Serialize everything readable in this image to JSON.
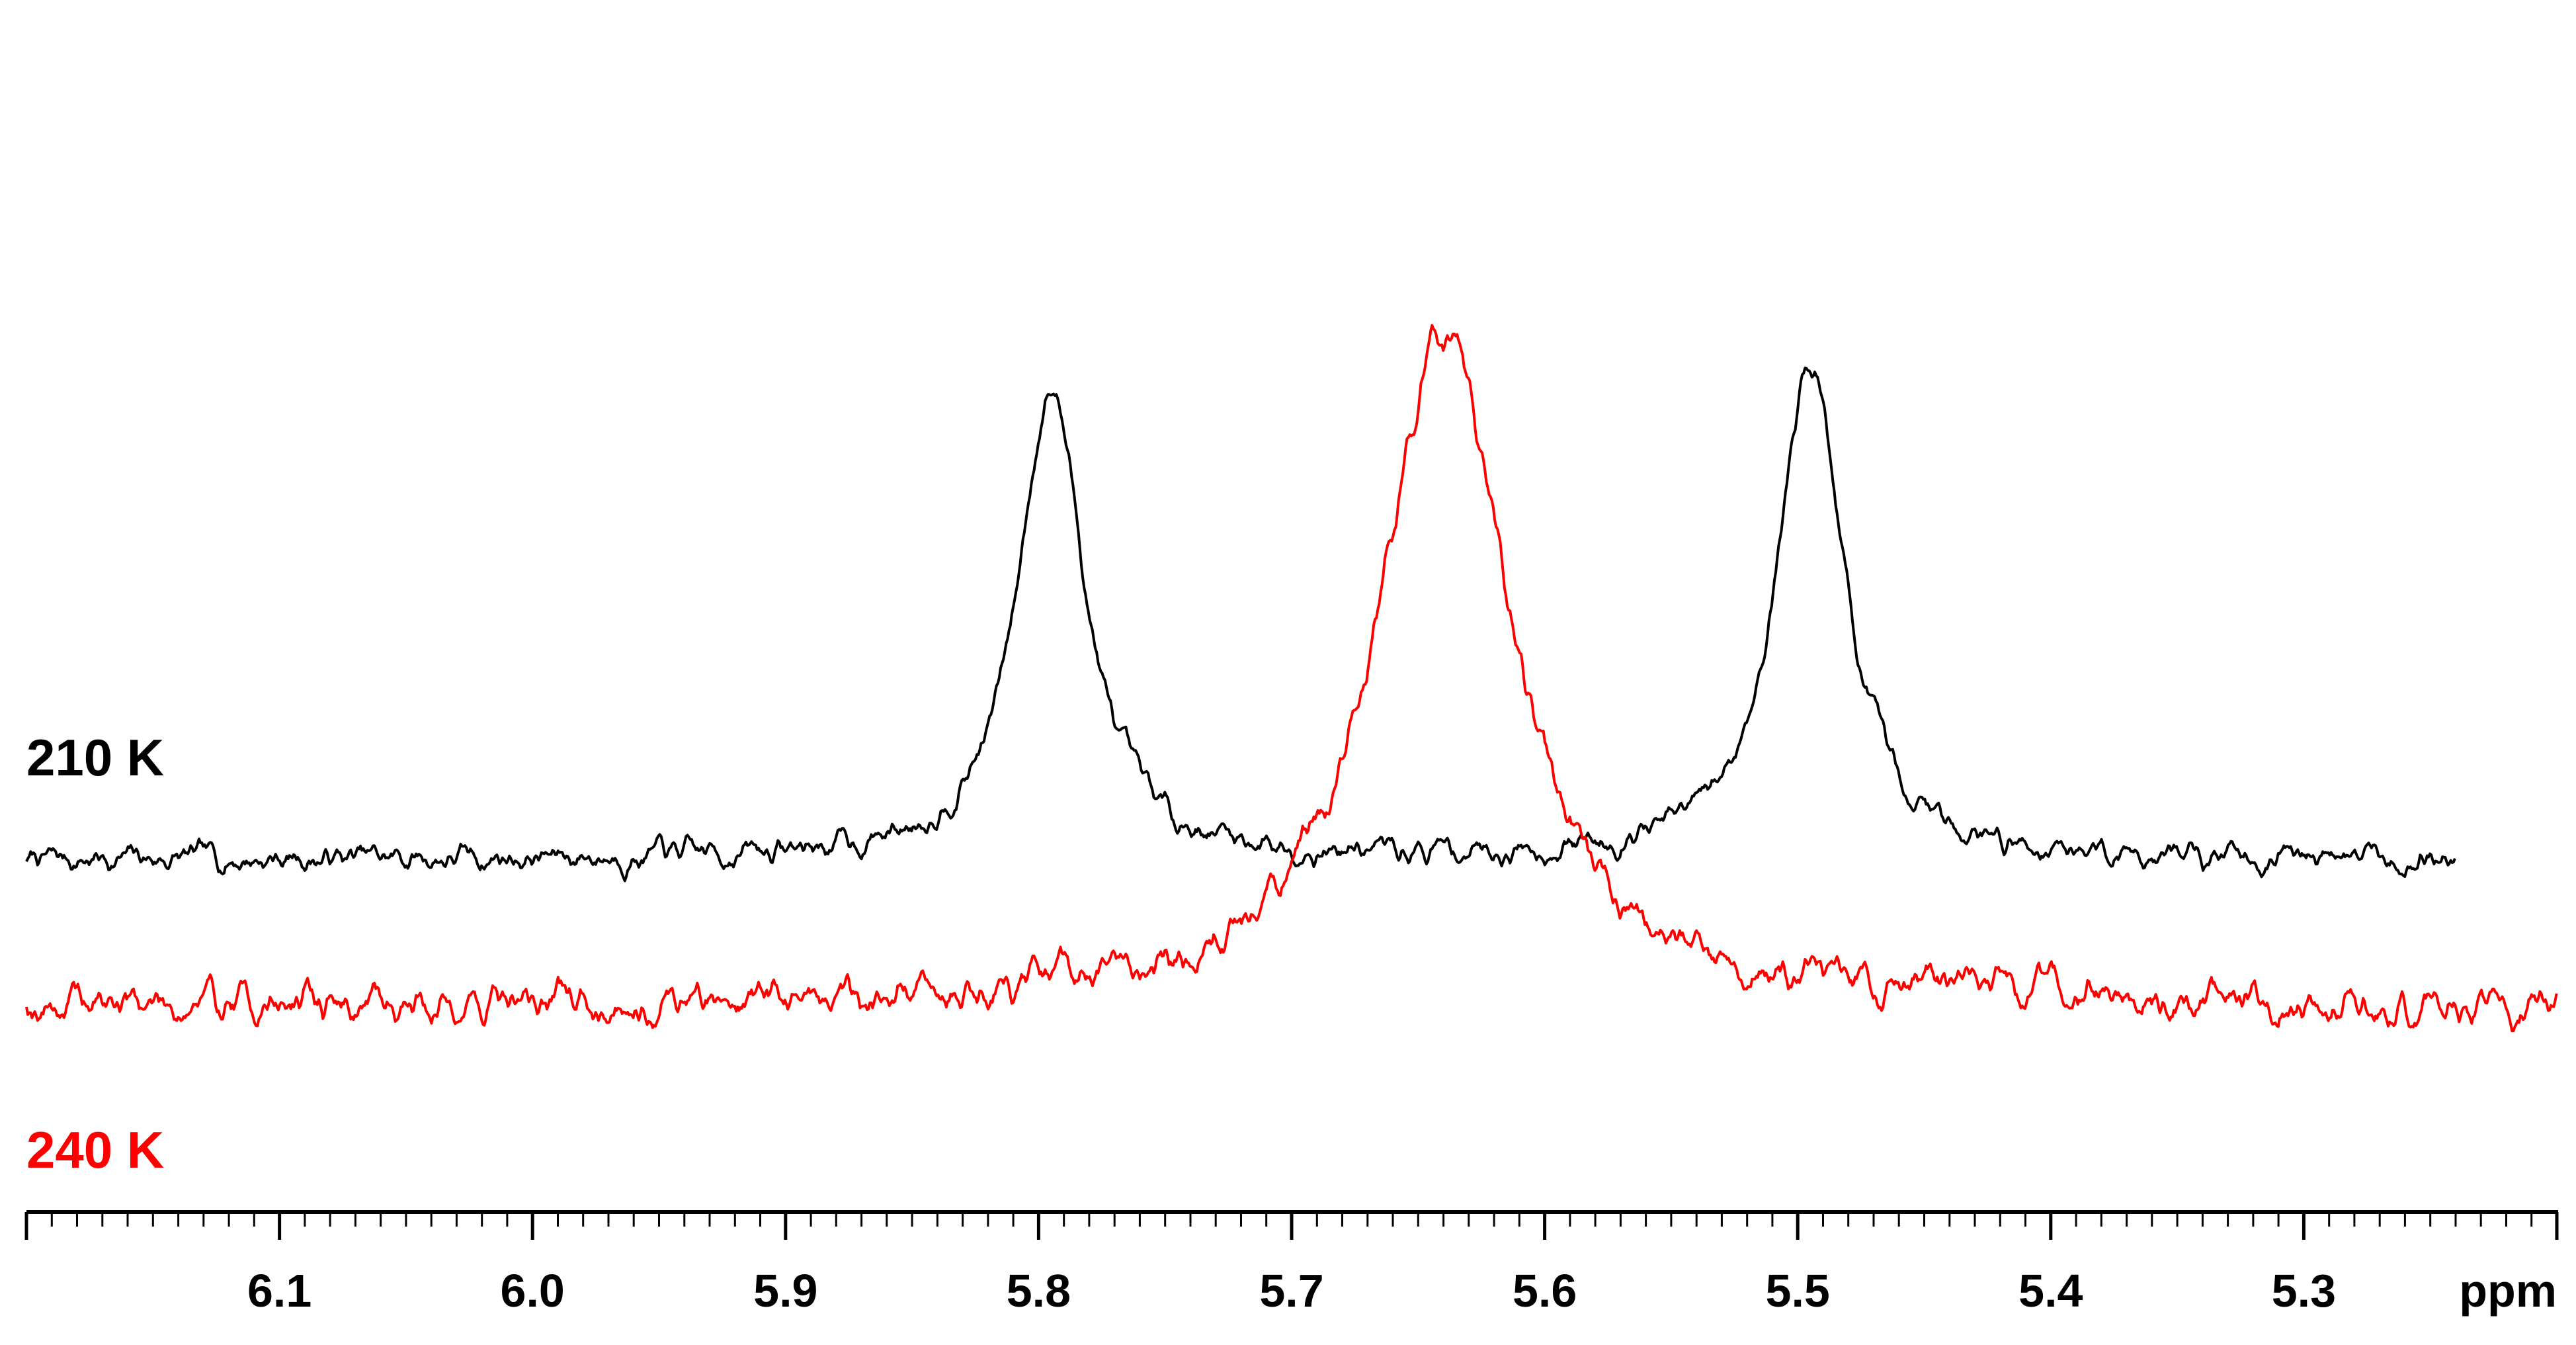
{
  "chart_data": {
    "type": "line",
    "title": "",
    "xlabel": "ppm",
    "ylabel": "",
    "xlim": [
      6.2,
      5.2
    ],
    "x_reversed": true,
    "grid": false,
    "axis_ticks": [
      "6.1",
      "6.0",
      "5.9",
      "5.8",
      "5.7",
      "5.6",
      "5.5",
      "5.4",
      "5.3"
    ],
    "axis_unit": "ppm",
    "series": [
      {
        "name": "210 K",
        "color": "#000000",
        "x_range": [
          6.2,
          5.24
        ],
        "baseline": 0.0,
        "noise": 0.025,
        "peaks": [
          {
            "center": 5.795,
            "height": 1.0,
            "width": 0.0165
          },
          {
            "center": 5.495,
            "height": 1.06,
            "width": 0.0165
          }
        ]
      },
      {
        "name": "240 K",
        "color": "#ff0000",
        "x_range": [
          6.2,
          5.2
        ],
        "baseline": 0.0,
        "noise": 0.035,
        "peaks": [
          {
            "center": 5.64,
            "height": 1.38,
            "width": 0.032
          }
        ]
      }
    ]
  }
}
